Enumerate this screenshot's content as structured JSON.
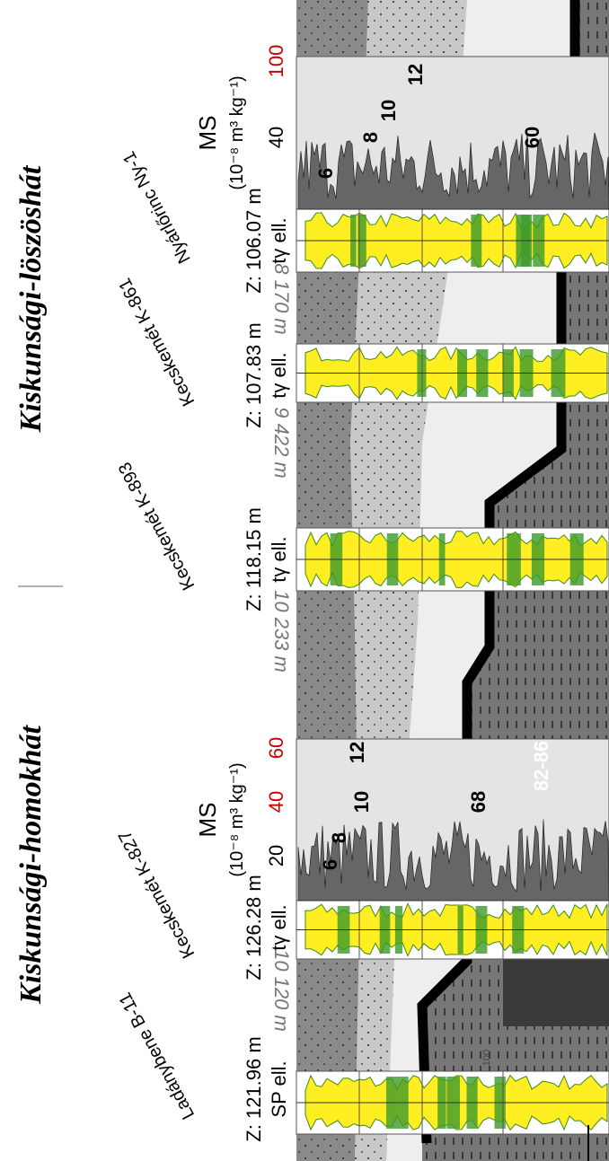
{
  "titles": [
    "Kiskunsági-homokhát",
    "Kiskunsági-löszöshát"
  ],
  "wells": [
    {
      "name": "Ladánybene B-11",
      "z": "Z: 121.96 m",
      "log": "SP ell."
    },
    {
      "name": "Kecskemét K-827",
      "z": "Z: 126.28 m",
      "log": "tγ ell."
    },
    {
      "name": "Kecskemét K-893",
      "z": "Z: 118.15 m",
      "log": "tγ ell."
    },
    {
      "name": "Kecskemét K-861",
      "z": "Z: 107.83 m",
      "log": "tγ ell."
    },
    {
      "name": "Nyárlőrinc Ny-1",
      "z": "Z: 106.07 m",
      "log": "tγ ell."
    }
  ],
  "distances": [
    "10 120 m",
    "10 233 m",
    "9 422 m",
    "8 170 m"
  ],
  "ms_panels": [
    {
      "label": "MS",
      "unit": "(10⁻⁸ m³ kg⁻¹)",
      "ticks": [
        "20",
        "40",
        "60"
      ],
      "layers": [
        "6",
        "8",
        "10",
        "12",
        "68",
        "82-86"
      ]
    },
    {
      "label": "MS",
      "unit": "(10⁻⁸ m³ kg⁻¹)",
      "ticks": [
        "40",
        "100"
      ],
      "layers": [
        "6",
        "8",
        "10",
        "12",
        "60"
      ]
    }
  ],
  "depth_label": "100"
}
